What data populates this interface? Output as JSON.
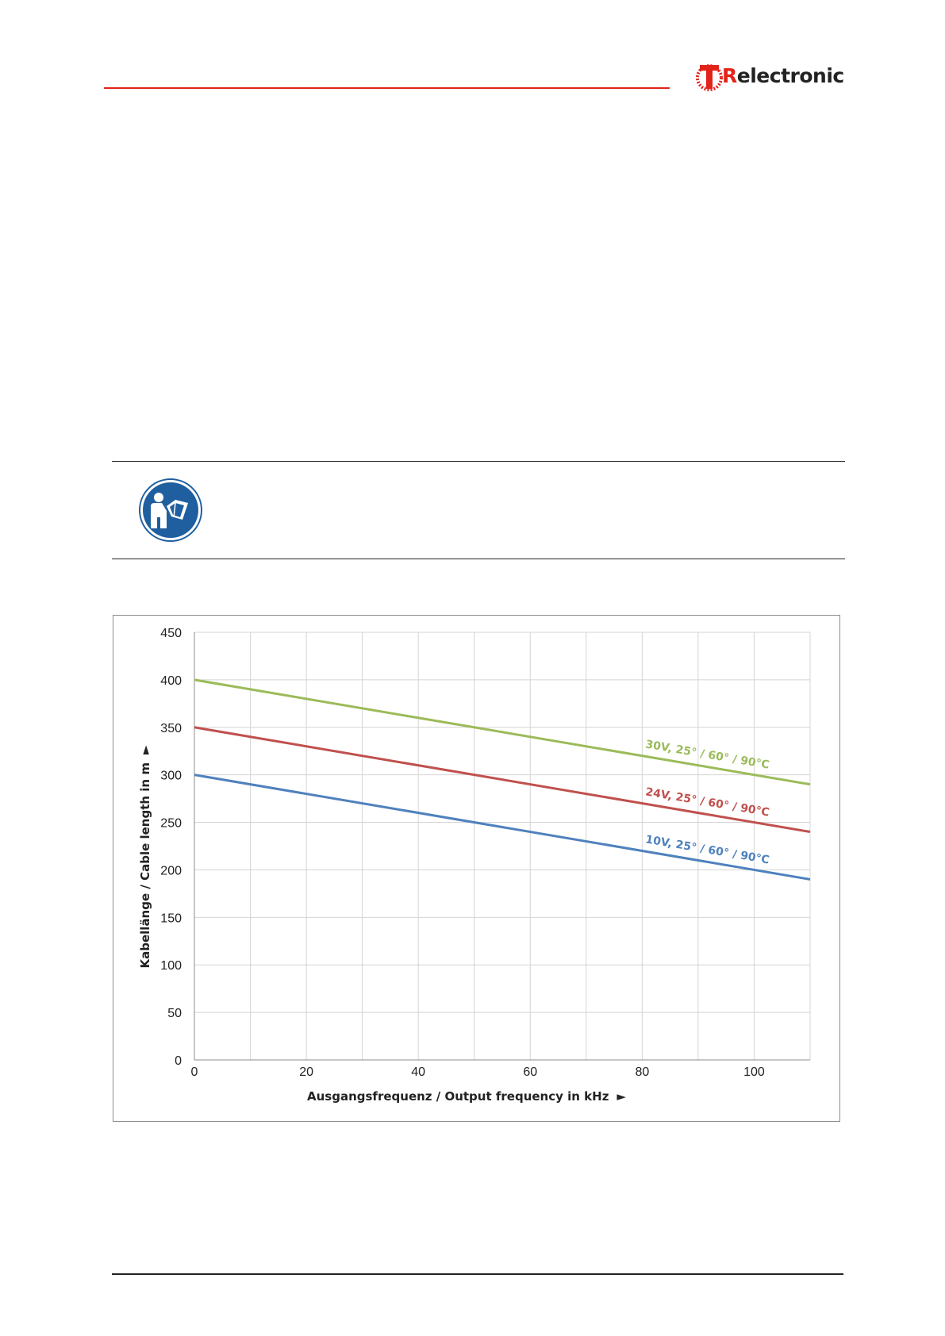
{
  "header": {
    "logo": {
      "brand_prefix": "R",
      "brand_rest": "electronic",
      "brand_color": "#e2231a"
    }
  },
  "notice": {
    "icon": "read-manual-icon",
    "icon_color": "#1f5fa0"
  },
  "chart_data": {
    "type": "line",
    "xlabel": "Ausgangsfrequenz / Output frequency in kHz",
    "ylabel": "Kabellänge / Cable length in m",
    "xlim": [
      0,
      110
    ],
    "ylim": [
      0,
      450
    ],
    "xticks": [
      0,
      20,
      40,
      60,
      80,
      100
    ],
    "yticks": [
      0,
      50,
      100,
      150,
      200,
      250,
      300,
      350,
      400,
      450
    ],
    "grid": true,
    "axis_arrow": "►",
    "series": [
      {
        "name": "30V, 25° / 60° / 90°C",
        "color": "#9bbb59",
        "x": [
          0,
          110
        ],
        "y": [
          400,
          290
        ]
      },
      {
        "name": "24V, 25° / 60° / 90°C",
        "color": "#c0504d",
        "x": [
          0,
          110
        ],
        "y": [
          350,
          240
        ]
      },
      {
        "name": "10V, 25° / 60° / 90°C",
        "color": "#4f81bd",
        "x": [
          0,
          110
        ],
        "y": [
          300,
          190
        ]
      }
    ]
  }
}
